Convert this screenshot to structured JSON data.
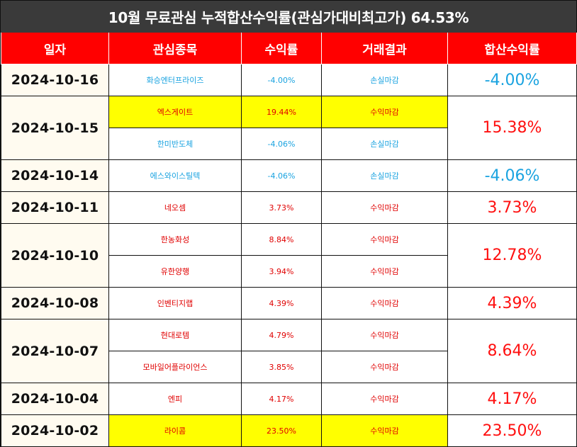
{
  "title": "10월 무료관심 누적합산수익률(관심가대비최고가) 64.53%",
  "headers": [
    "일자",
    "관심종목",
    "수익률",
    "거래결과",
    "합산수익률"
  ],
  "groups": [
    {
      "date": "2024-10-16",
      "total": "-4.00%",
      "total_type": "loss",
      "rows": [
        {
          "stock": "화승엔터프라이즈",
          "rate": "-4.00%",
          "result": "손실마감",
          "type": "loss",
          "highlight": false
        }
      ]
    },
    {
      "date": "2024-10-15",
      "total": "15.38%",
      "total_type": "gain",
      "rows": [
        {
          "stock": "엑스게이트",
          "rate": "19.44%",
          "result": "수익마감",
          "type": "gain",
          "highlight": true
        },
        {
          "stock": "한미반도체",
          "rate": "-4.06%",
          "result": "손실마감",
          "type": "loss",
          "highlight": false
        }
      ]
    },
    {
      "date": "2024-10-14",
      "total": "-4.06%",
      "total_type": "loss",
      "rows": [
        {
          "stock": "에스와이스틸텍",
          "rate": "-4.06%",
          "result": "손실마감",
          "type": "loss",
          "highlight": false
        }
      ]
    },
    {
      "date": "2024-10-11",
      "total": "3.73%",
      "total_type": "gain",
      "rows": [
        {
          "stock": "네오셈",
          "rate": "3.73%",
          "result": "수익마감",
          "type": "gain",
          "highlight": false
        }
      ]
    },
    {
      "date": "2024-10-10",
      "total": "12.78%",
      "total_type": "gain",
      "rows": [
        {
          "stock": "한농화성",
          "rate": "8.84%",
          "result": "수익마감",
          "type": "gain",
          "highlight": false
        },
        {
          "stock": "유한양행",
          "rate": "3.94%",
          "result": "수익마감",
          "type": "gain",
          "highlight": false
        }
      ]
    },
    {
      "date": "2024-10-08",
      "total": "4.39%",
      "total_type": "gain",
      "rows": [
        {
          "stock": "인벤티지랩",
          "rate": "4.39%",
          "result": "수익마감",
          "type": "gain",
          "highlight": false
        }
      ]
    },
    {
      "date": "2024-10-07",
      "total": "8.64%",
      "total_type": "gain",
      "rows": [
        {
          "stock": "현대로템",
          "rate": "4.79%",
          "result": "수익마감",
          "type": "gain",
          "highlight": false
        },
        {
          "stock": "모바일어플라이언스",
          "rate": "3.85%",
          "result": "수익마감",
          "type": "gain",
          "highlight": false
        }
      ]
    },
    {
      "date": "2024-10-04",
      "total": "4.17%",
      "total_type": "gain",
      "rows": [
        {
          "stock": "엔피",
          "rate": "4.17%",
          "result": "수익마감",
          "type": "gain",
          "highlight": false
        }
      ]
    },
    {
      "date": "2024-10-02",
      "total": "23.50%",
      "total_type": "gain",
      "rows": [
        {
          "stock": "라이콤",
          "rate": "23.50%",
          "result": "수익마감",
          "type": "gain",
          "highlight": true
        }
      ]
    }
  ],
  "colors": {
    "header_bg": "#ff0000",
    "title_bg": "#3a3a3a",
    "gain": "#e00000",
    "loss": "#1aa3e0",
    "highlight": "#ffff00",
    "date_bg": "#fffbf0"
  }
}
